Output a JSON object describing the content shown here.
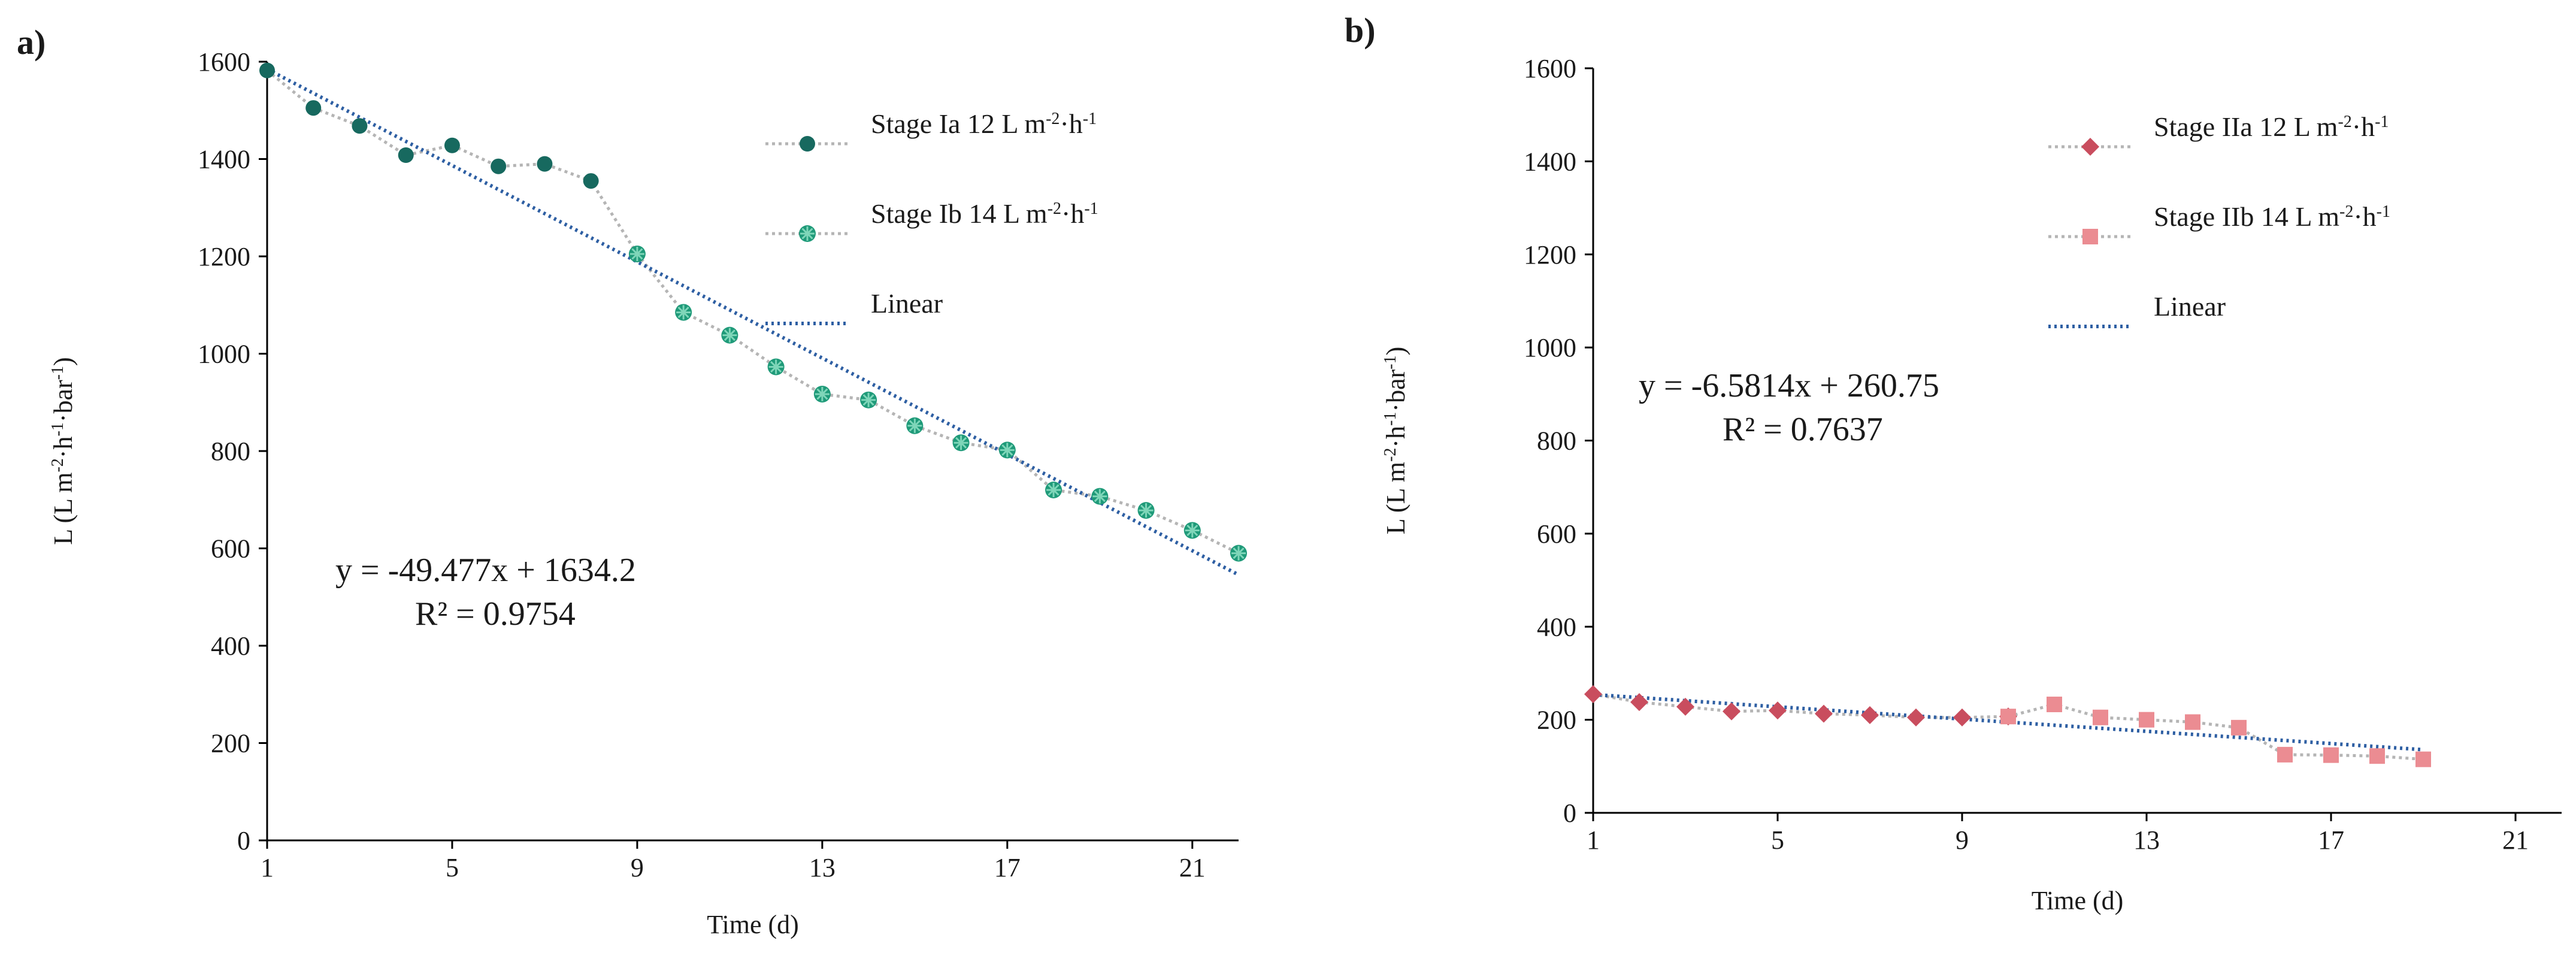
{
  "chart_data": [
    {
      "panel": "a)",
      "type": "line",
      "xlabel": "Time (d)",
      "ylabel": "L (L m-2·h-1·bar-1)",
      "ylabel_parts": [
        "L (L m",
        "-2",
        "·h",
        "-1",
        "·bar",
        "-1",
        ")"
      ],
      "xlim": [
        1,
        22
      ],
      "ylim": [
        0,
        1600
      ],
      "xticks": [
        1,
        5,
        9,
        13,
        17,
        21
      ],
      "yticks": [
        0,
        200,
        400,
        600,
        800,
        1000,
        1200,
        1400,
        1600
      ],
      "series": [
        {
          "name": "Stage Ia 12 L m-2·h-1",
          "legend_parts": [
            "Stage Ia 12 L m",
            "-2",
            "·h",
            "-1"
          ],
          "marker": "circle",
          "color": "#17695f",
          "x": [
            1,
            2,
            3,
            4,
            5,
            6,
            7,
            8,
            9
          ],
          "y": [
            1582,
            1505,
            1468,
            1408,
            1428,
            1385,
            1390,
            1355,
            1205
          ]
        },
        {
          "name": "Stage Ib 14 L m-2·h-1",
          "legend_parts": [
            "Stage Ib 14 L m",
            "-2",
            "·h",
            "-1"
          ],
          "marker": "star",
          "color": "#1f9a79",
          "x": [
            9,
            10,
            11,
            12,
            13,
            14,
            15,
            16,
            17,
            18,
            19,
            20,
            21,
            22
          ],
          "y": [
            1205,
            1085,
            1038,
            973,
            917,
            905,
            852,
            817,
            802,
            720,
            707,
            678,
            637,
            590
          ]
        }
      ],
      "trendline": {
        "name": "Linear",
        "slope": -49.477,
        "intercept": 1634.2,
        "x_range": [
          1,
          22
        ],
        "color": "#2e5fa3"
      },
      "equation": "y = -49.477x + 1634.2",
      "r2": "R² = 0.9754"
    },
    {
      "panel": "b)",
      "type": "line",
      "xlabel": "Time (d)",
      "ylabel": "L (L m-2·h-1·bar-1)",
      "ylabel_parts": [
        "L (L m",
        "-2",
        "·h",
        "-1",
        "·bar",
        "-1",
        ")"
      ],
      "xlim": [
        1,
        22
      ],
      "ylim": [
        0,
        1600
      ],
      "xticks": [
        1,
        5,
        9,
        13,
        17,
        21
      ],
      "yticks": [
        0,
        200,
        400,
        600,
        800,
        1000,
        1200,
        1400,
        1600
      ],
      "series": [
        {
          "name": "Stage IIa 12 L m-2·h-1",
          "legend_parts": [
            "Stage IIa 12 L m",
            "-2",
            "·h",
            "-1"
          ],
          "marker": "diamond",
          "color": "#c94d5e",
          "x": [
            1,
            2,
            3,
            4,
            5,
            6,
            7,
            8,
            9,
            10
          ],
          "y": [
            255,
            238,
            228,
            218,
            220,
            213,
            210,
            205,
            205,
            207
          ]
        },
        {
          "name": "Stage IIb 14 L m-2·h-1",
          "legend_parts": [
            "Stage IIb 14 L m",
            "-2",
            "·h",
            "-1"
          ],
          "marker": "square",
          "color": "#eb8c92",
          "x": [
            10,
            11,
            12,
            13,
            14,
            15,
            16,
            17,
            18,
            19
          ],
          "y": [
            207,
            233,
            205,
            200,
            195,
            183,
            125,
            124,
            122,
            115
          ]
        }
      ],
      "trendline": {
        "name": "Linear",
        "slope": -6.5814,
        "intercept": 260.75,
        "x_range": [
          1,
          19
        ],
        "color": "#2e5fa3"
      },
      "equation": "y = -6.5814x + 260.75",
      "r2": "R² = 0.7637"
    }
  ]
}
